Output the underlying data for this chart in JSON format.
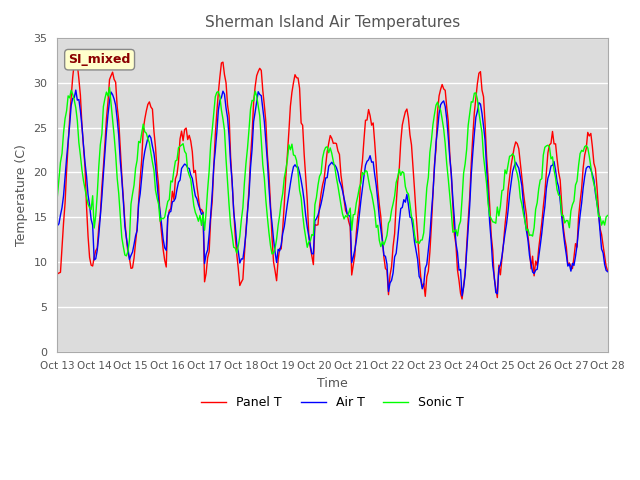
{
  "title": "Sherman Island Air Temperatures",
  "xlabel": "Time",
  "ylabel": "Temperature (C)",
  "ylim": [
    0,
    35
  ],
  "annotation": "SI_mixed",
  "legend": [
    "Panel T",
    "Air T",
    "Sonic T"
  ],
  "colors": [
    "red",
    "blue",
    "green"
  ],
  "x_tick_labels": [
    "Oct 13",
    "Oct 14",
    "Oct 15",
    "Oct 16",
    "Oct 17",
    "Oct 18",
    "Oct 19",
    "Oct 20",
    "Oct 21",
    "Oct 22",
    "Oct 23",
    "Oct 24",
    "Oct 25",
    "Oct 26",
    "Oct 27",
    "Oct 28"
  ],
  "bg_color": "#e8e8e8",
  "plot_bg": "#f0f0f0",
  "title_color": "#444444",
  "axis_color": "#888888"
}
